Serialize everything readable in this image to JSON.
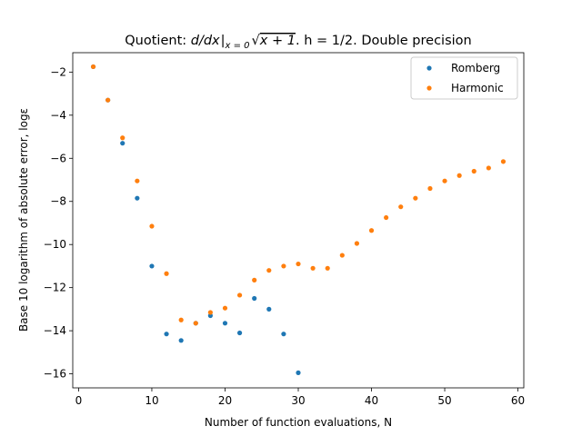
{
  "chart_data": {
    "type": "scatter",
    "title_parts": {
      "prefix": "Quotient: ",
      "operator": "d/dx",
      "subscript": "x = 0",
      "radicand": "x + 1",
      "suffix": ". h = 1/2. Double precision"
    },
    "xlabel": "Number of function evaluations, N",
    "ylabel": "Base 10 logarithm of absolute error, logε",
    "xlim": [
      -0.8,
      60.8
    ],
    "ylim": [
      -16.65,
      -1.1
    ],
    "xticks": [
      0,
      10,
      20,
      30,
      40,
      50,
      60
    ],
    "yticks": [
      -16,
      -14,
      -12,
      -10,
      -8,
      -6,
      -4,
      -2
    ],
    "ytick_labels": [
      "−16",
      "−14",
      "−12",
      "−10",
      "−8",
      "−6",
      "−4",
      "−2"
    ],
    "legend_position": "top-right",
    "series": [
      {
        "name": "Romberg",
        "color": "#1f77b4",
        "x": [
          2,
          4,
          6,
          8,
          10,
          12,
          14,
          16,
          18,
          20,
          22,
          24,
          26,
          28,
          30
        ],
        "y": [
          -1.75,
          -3.3,
          -5.3,
          -7.85,
          -11.0,
          -14.15,
          -14.45,
          -13.65,
          -13.3,
          -13.65,
          -14.1,
          -12.5,
          -13.0,
          -14.15,
          -15.95
        ]
      },
      {
        "name": "Harmonic",
        "color": "#ff7f0e",
        "x": [
          2,
          4,
          6,
          8,
          10,
          12,
          14,
          16,
          18,
          20,
          22,
          24,
          26,
          28,
          30,
          32,
          34,
          36,
          38,
          40,
          42,
          44,
          46,
          48,
          50,
          52,
          54,
          56,
          58
        ],
        "y": [
          -1.75,
          -3.3,
          -5.05,
          -7.05,
          -9.15,
          -11.35,
          -13.5,
          -13.65,
          -13.15,
          -12.95,
          -12.35,
          -11.65,
          -11.2,
          -11.0,
          -10.9,
          -11.1,
          -11.1,
          -10.5,
          -9.95,
          -9.35,
          -8.75,
          -8.25,
          -7.85,
          -7.4,
          -7.05,
          -6.8,
          -6.6,
          -6.45,
          -6.15
        ]
      }
    ]
  }
}
